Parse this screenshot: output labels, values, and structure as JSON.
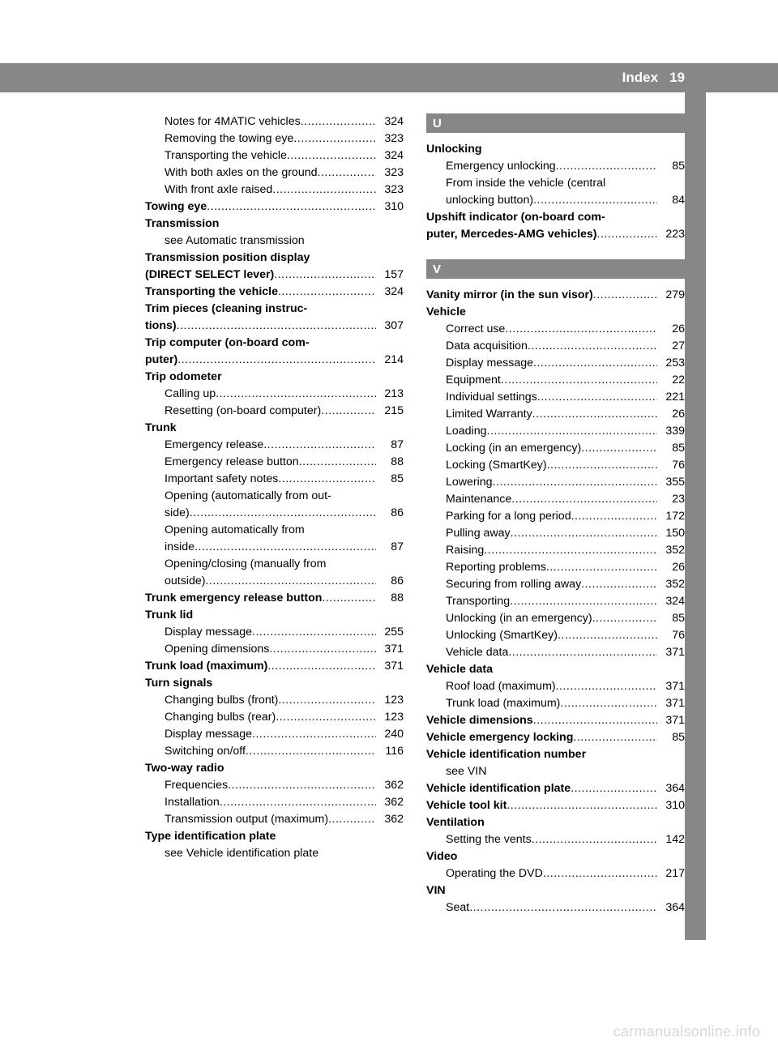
{
  "header": {
    "title": "Index",
    "page": "19"
  },
  "colors": {
    "bar_bg": "#878787",
    "bar_text": "#ffffff",
    "body_text": "#000000",
    "page_bg": "#ffffff",
    "watermark": "#d7d7d7"
  },
  "watermark": "carmanualsonline.info",
  "col1": [
    {
      "type": "sub",
      "label": "Notes for 4MATIC vehicles",
      "page": "324"
    },
    {
      "type": "sub",
      "label": "Removing the towing eye",
      "page": "323"
    },
    {
      "type": "sub",
      "label": "Transporting the vehicle",
      "page": "324"
    },
    {
      "type": "sub",
      "label": "With both axles on the ground",
      "page": "323"
    },
    {
      "type": "sub",
      "label": "With front axle raised",
      "page": "323"
    },
    {
      "type": "bold",
      "label": "Towing eye",
      "page": "310"
    },
    {
      "type": "boldline",
      "label": "Transmission"
    },
    {
      "type": "subline",
      "label": "see Automatic transmission"
    },
    {
      "type": "boldline",
      "label": "Transmission position display"
    },
    {
      "type": "bold",
      "label": "(DIRECT SELECT lever)",
      "page": "157"
    },
    {
      "type": "bold",
      "label": "Transporting the vehicle",
      "page": "324"
    },
    {
      "type": "boldline",
      "label": "Trim pieces (cleaning instruc-"
    },
    {
      "type": "bold",
      "label": "tions)",
      "page": "307"
    },
    {
      "type": "boldline",
      "label": "Trip computer (on-board com-"
    },
    {
      "type": "bold",
      "label": "puter)",
      "page": "214"
    },
    {
      "type": "boldline",
      "label": "Trip odometer"
    },
    {
      "type": "sub",
      "label": "Calling up",
      "page": "213"
    },
    {
      "type": "sub",
      "label": "Resetting (on-board computer)",
      "page": "215"
    },
    {
      "type": "boldline",
      "label": "Trunk"
    },
    {
      "type": "sub",
      "label": "Emergency release",
      "page": "87"
    },
    {
      "type": "sub",
      "label": "Emergency release button",
      "page": "88"
    },
    {
      "type": "sub",
      "label": "Important safety notes",
      "page": "85"
    },
    {
      "type": "subline",
      "label": "Opening (automatically from out-"
    },
    {
      "type": "sub",
      "label": "side)",
      "page": "86"
    },
    {
      "type": "subline",
      "label": "Opening automatically from"
    },
    {
      "type": "sub",
      "label": "inside",
      "page": "87"
    },
    {
      "type": "subline",
      "label": "Opening/closing (manually from"
    },
    {
      "type": "sub",
      "label": "outside)",
      "page": "86"
    },
    {
      "type": "bold",
      "label": "Trunk emergency release button",
      "page": "88"
    },
    {
      "type": "boldline",
      "label": "Trunk lid"
    },
    {
      "type": "sub",
      "label": "Display message",
      "page": "255"
    },
    {
      "type": "sub",
      "label": "Opening dimensions",
      "page": "371"
    },
    {
      "type": "bold",
      "label": "Trunk load (maximum)",
      "page": "371"
    },
    {
      "type": "boldline",
      "label": "Turn signals"
    },
    {
      "type": "sub",
      "label": "Changing bulbs (front)",
      "page": "123"
    },
    {
      "type": "sub",
      "label": "Changing bulbs (rear)",
      "page": "123"
    },
    {
      "type": "sub",
      "label": "Display message",
      "page": "240"
    },
    {
      "type": "sub",
      "label": "Switching on/off",
      "page": "116"
    },
    {
      "type": "boldline",
      "label": "Two-way radio"
    },
    {
      "type": "sub",
      "label": "Frequencies",
      "page": "362"
    },
    {
      "type": "sub",
      "label": "Installation",
      "page": "362"
    },
    {
      "type": "sub",
      "label": "Transmission output (maximum)",
      "page": "362"
    },
    {
      "type": "boldline",
      "label": "Type identification plate"
    },
    {
      "type": "subline",
      "label": "see Vehicle identification plate"
    }
  ],
  "col2": [
    {
      "type": "letter",
      "label": "U"
    },
    {
      "type": "boldline",
      "label": "Unlocking"
    },
    {
      "type": "sub",
      "label": "Emergency unlocking",
      "page": "85"
    },
    {
      "type": "subline",
      "label": "From inside the vehicle (central"
    },
    {
      "type": "sub",
      "label": "unlocking button)",
      "page": "84"
    },
    {
      "type": "boldline",
      "label": "Upshift indicator (on-board com-"
    },
    {
      "type": "bold",
      "label": "puter, Mercedes-AMG vehicles)",
      "page": "223"
    },
    {
      "type": "spacer"
    },
    {
      "type": "letter",
      "label": "V"
    },
    {
      "type": "bold",
      "label": "Vanity mirror (in the sun visor)",
      "page": "279"
    },
    {
      "type": "boldline",
      "label": "Vehicle"
    },
    {
      "type": "sub",
      "label": "Correct use",
      "page": "26"
    },
    {
      "type": "sub",
      "label": "Data acquisition",
      "page": "27"
    },
    {
      "type": "sub",
      "label": "Display message",
      "page": "253"
    },
    {
      "type": "sub",
      "label": "Equipment",
      "page": "22"
    },
    {
      "type": "sub",
      "label": "Individual settings",
      "page": "221"
    },
    {
      "type": "sub",
      "label": "Limited Warranty",
      "page": "26"
    },
    {
      "type": "sub",
      "label": "Loading",
      "page": "339"
    },
    {
      "type": "sub",
      "label": "Locking (in an emergency)",
      "page": "85"
    },
    {
      "type": "sub",
      "label": "Locking (SmartKey)",
      "page": "76"
    },
    {
      "type": "sub",
      "label": "Lowering",
      "page": "355"
    },
    {
      "type": "sub",
      "label": "Maintenance",
      "page": "23"
    },
    {
      "type": "sub",
      "label": "Parking for a long period",
      "page": "172"
    },
    {
      "type": "sub",
      "label": "Pulling away",
      "page": "150"
    },
    {
      "type": "sub",
      "label": "Raising",
      "page": "352"
    },
    {
      "type": "sub",
      "label": "Reporting problems",
      "page": "26"
    },
    {
      "type": "sub",
      "label": "Securing from rolling away",
      "page": "352"
    },
    {
      "type": "sub",
      "label": "Transporting",
      "page": "324"
    },
    {
      "type": "sub",
      "label": "Unlocking (in an emergency)",
      "page": "85"
    },
    {
      "type": "sub",
      "label": "Unlocking (SmartKey)",
      "page": "76"
    },
    {
      "type": "sub",
      "label": "Vehicle data",
      "page": "371"
    },
    {
      "type": "boldline",
      "label": "Vehicle data"
    },
    {
      "type": "sub",
      "label": "Roof load (maximum)",
      "page": "371"
    },
    {
      "type": "sub",
      "label": "Trunk load (maximum)",
      "page": "371"
    },
    {
      "type": "bold",
      "label": "Vehicle dimensions",
      "page": "371"
    },
    {
      "type": "bold",
      "label": "Vehicle emergency locking",
      "page": "85"
    },
    {
      "type": "boldline",
      "label": "Vehicle identification number"
    },
    {
      "type": "subline",
      "label": "see VIN"
    },
    {
      "type": "bold",
      "label": "Vehicle identification plate",
      "page": "364"
    },
    {
      "type": "bold",
      "label": "Vehicle tool kit",
      "page": "310"
    },
    {
      "type": "boldline",
      "label": "Ventilation"
    },
    {
      "type": "sub",
      "label": "Setting the vents",
      "page": "142"
    },
    {
      "type": "boldline",
      "label": "Video"
    },
    {
      "type": "sub",
      "label": "Operating the DVD",
      "page": "217"
    },
    {
      "type": "boldline",
      "label": "VIN"
    },
    {
      "type": "sub",
      "label": "Seat",
      "page": "364"
    }
  ]
}
